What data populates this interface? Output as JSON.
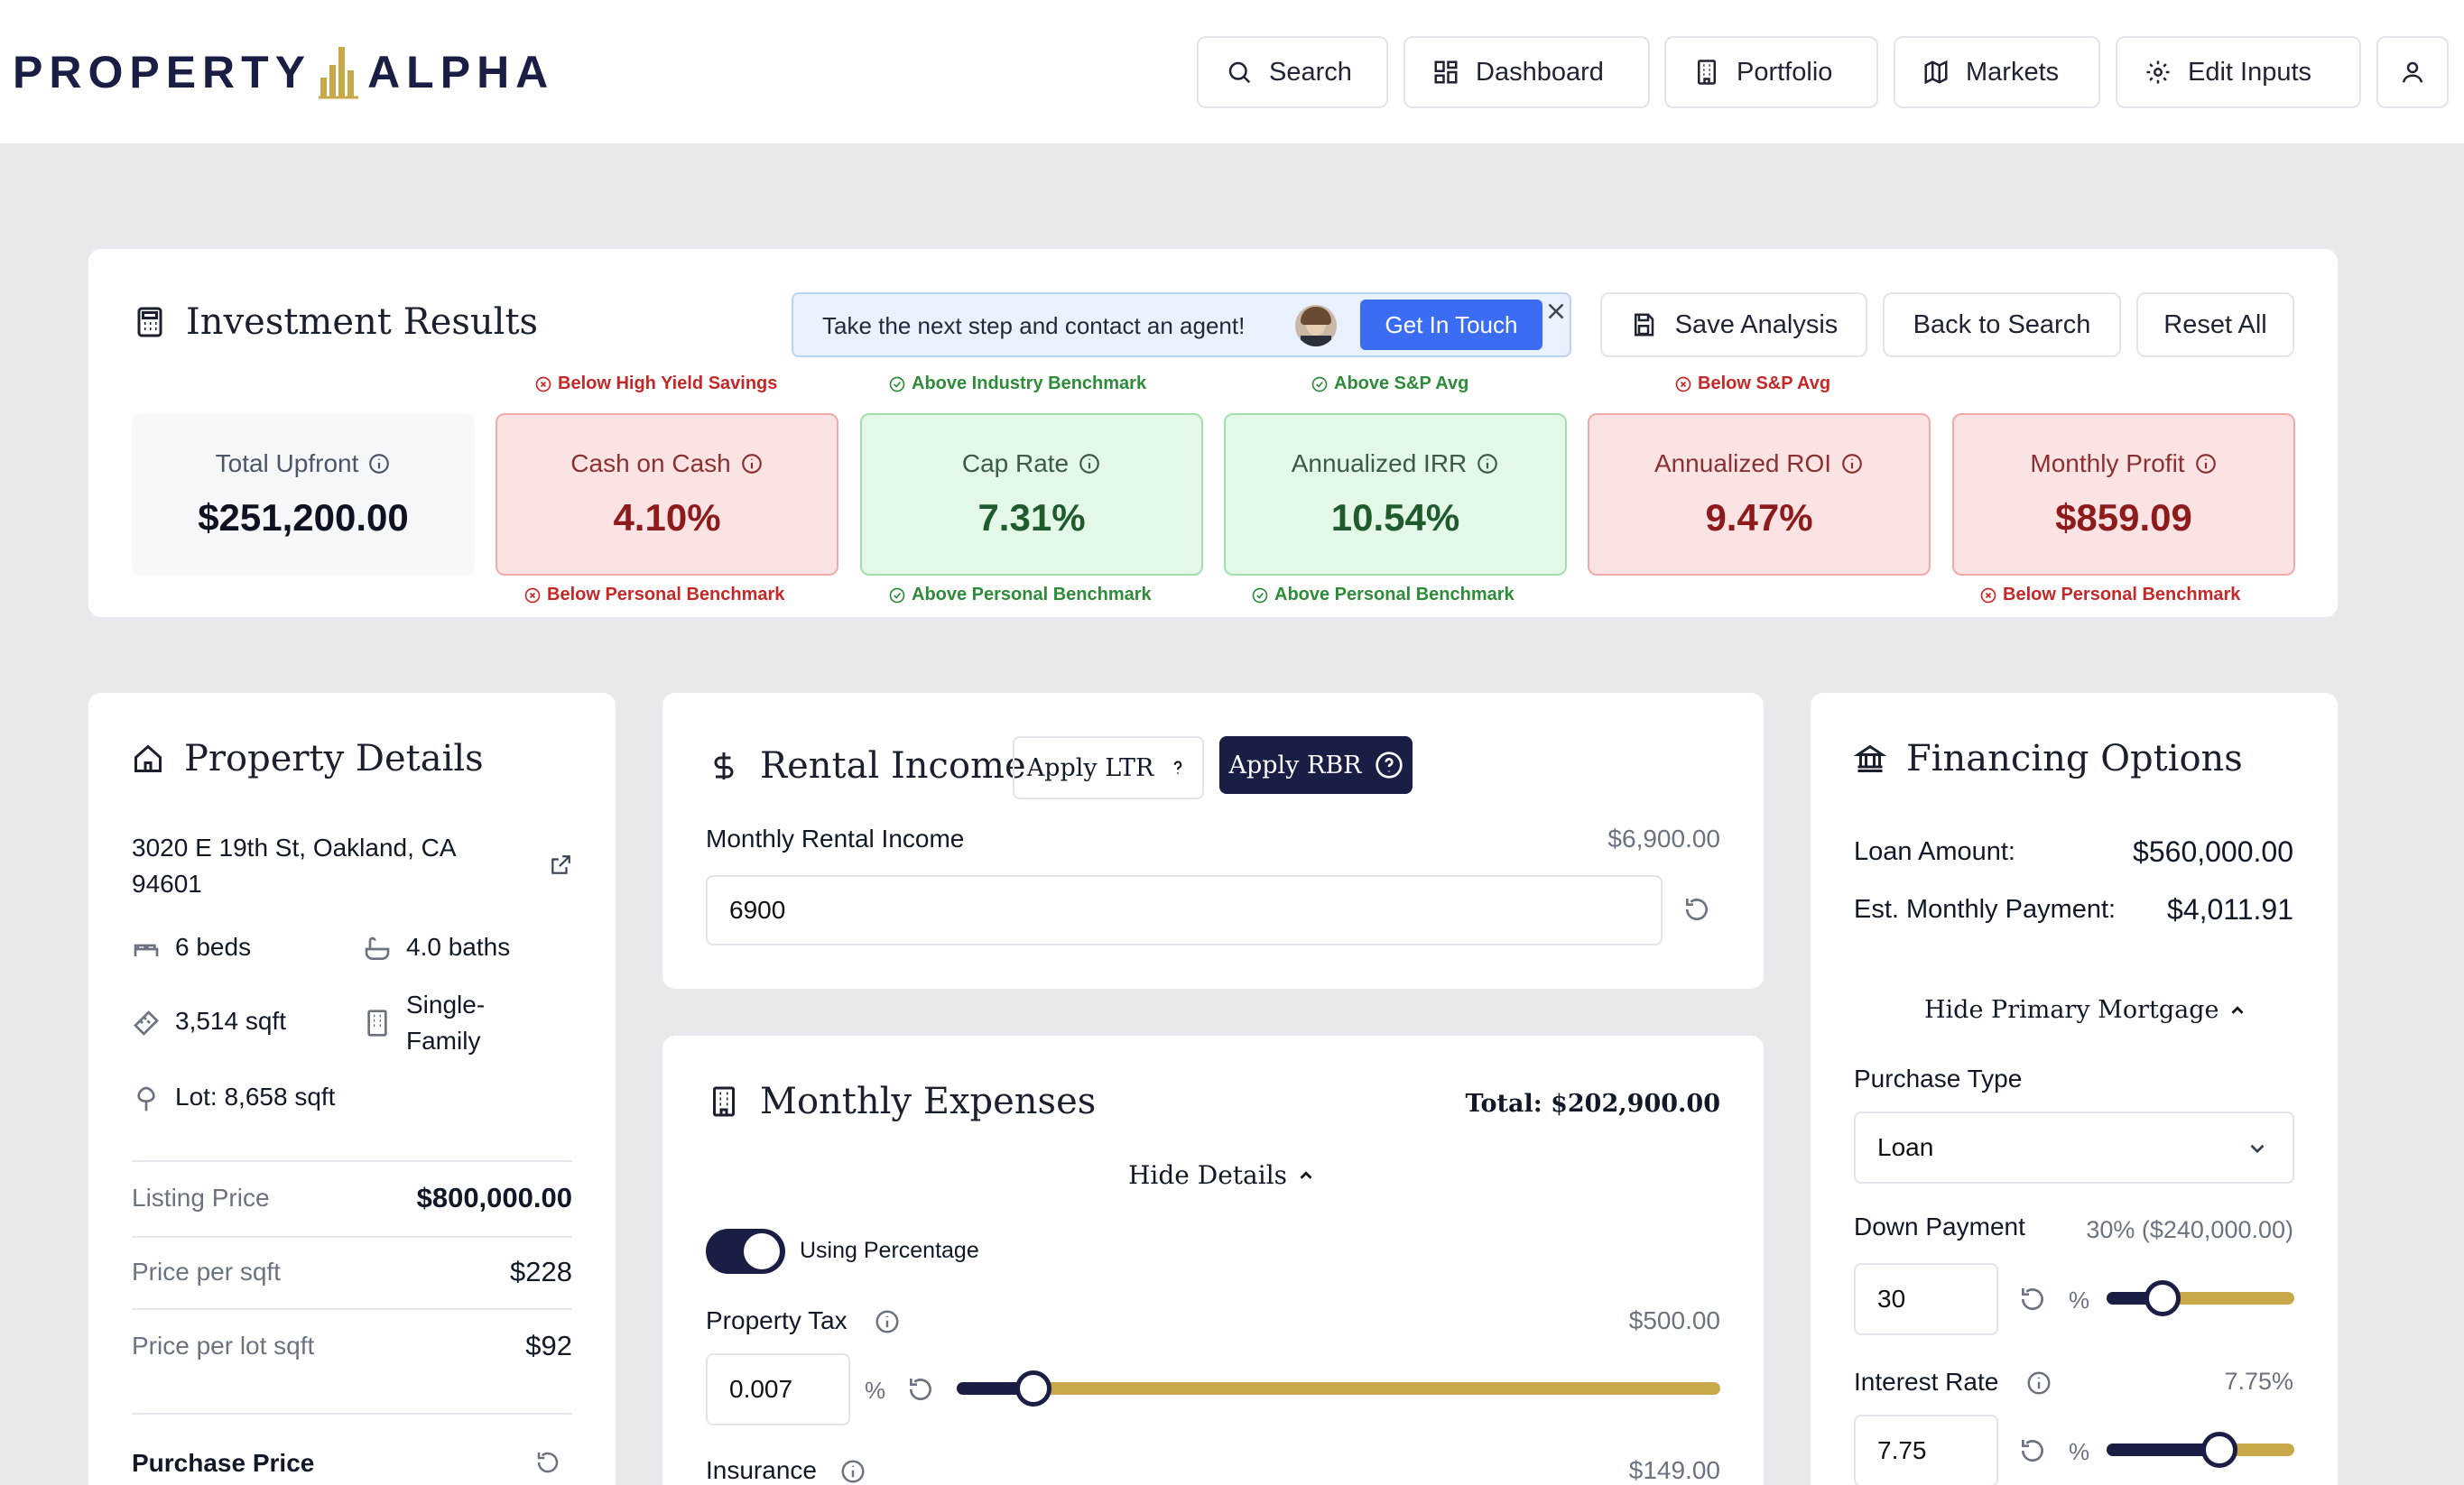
{
  "brand": {
    "left": "PROPERTY",
    "right": "ALPHA"
  },
  "nav": {
    "search": "Search",
    "dashboard": "Dashboard",
    "portfolio": "Portfolio",
    "markets": "Markets",
    "edit_inputs": "Edit Inputs"
  },
  "results": {
    "title": "Investment Results",
    "banner_text": "Take the next step and contact an agent!",
    "banner_button": "Get In Touch",
    "save": "Save Analysis",
    "back": "Back to Search",
    "reset": "Reset All",
    "metrics": [
      {
        "label": "Total Upfront",
        "value": "$251,200.00",
        "status": "neutral"
      },
      {
        "label": "Cash on Cash",
        "value": "4.10%",
        "status": "bad",
        "top": "Below High Yield Savings",
        "bottom": "Below Personal Benchmark"
      },
      {
        "label": "Cap Rate",
        "value": "7.31%",
        "status": "good",
        "top": "Above Industry Benchmark",
        "bottom": "Above Personal Benchmark"
      },
      {
        "label": "Annualized IRR",
        "value": "10.54%",
        "status": "good",
        "top": "Above S&P Avg",
        "bottom": "Above Personal Benchmark"
      },
      {
        "label": "Annualized ROI",
        "value": "9.47%",
        "status": "bad",
        "top": "Below S&P Avg"
      },
      {
        "label": "Monthly Profit",
        "value": "$859.09",
        "status": "bad",
        "bottom": "Below Personal Benchmark"
      }
    ]
  },
  "property": {
    "title": "Property Details",
    "address": "3020 E 19th St, Oakland, CA 94601",
    "beds": "6 beds",
    "baths": "4.0 baths",
    "sqft": "3,514 sqft",
    "type": "Single-Family",
    "lot": "Lot: 8,658 sqft",
    "rows": [
      {
        "label": "Listing Price",
        "value": "$800,000.00"
      },
      {
        "label": "Price per sqft",
        "value": "$228"
      },
      {
        "label": "Price per lot sqft",
        "value": "$92"
      }
    ],
    "purchase_price_label": "Purchase Price"
  },
  "rental": {
    "title": "Rental Income",
    "apply_ltr": "Apply LTR",
    "apply_rbr": "Apply RBR",
    "monthly_label": "Monthly Rental Income",
    "monthly_display": "$6,900.00",
    "monthly_value": "6900"
  },
  "expenses": {
    "title": "Monthly Expenses",
    "total": "Total: $202,900.00",
    "hide_details": "Hide Details",
    "toggle_label": "Using Percentage",
    "toggle_on": true,
    "property_tax_label": "Property Tax",
    "property_tax_display": "$500.00",
    "property_tax_value": "0.007",
    "property_tax_level": 0.1,
    "percent": "%",
    "insurance_label": "Insurance",
    "insurance_display": "$149.00"
  },
  "financing": {
    "title": "Financing Options",
    "loan_amount_label": "Loan Amount:",
    "loan_amount": "$560,000.00",
    "payment_label": "Est. Monthly Payment:",
    "payment": "$4,011.91",
    "hide_primary": "Hide Primary Mortgage",
    "purchase_type_label": "Purchase Type",
    "purchase_type": "Loan",
    "down_payment_label": "Down Payment",
    "down_payment_display": "30% ($240,000.00)",
    "down_payment_value": "30",
    "down_payment_level": 0.3,
    "interest_label": "Interest Rate",
    "interest_display": "7.75%",
    "interest_value": "7.75",
    "interest_level": 0.6,
    "percent": "%"
  },
  "colors": {
    "navy": "#1b1e44",
    "gold": "#c9a84a",
    "blue": "#3b6cf4"
  }
}
